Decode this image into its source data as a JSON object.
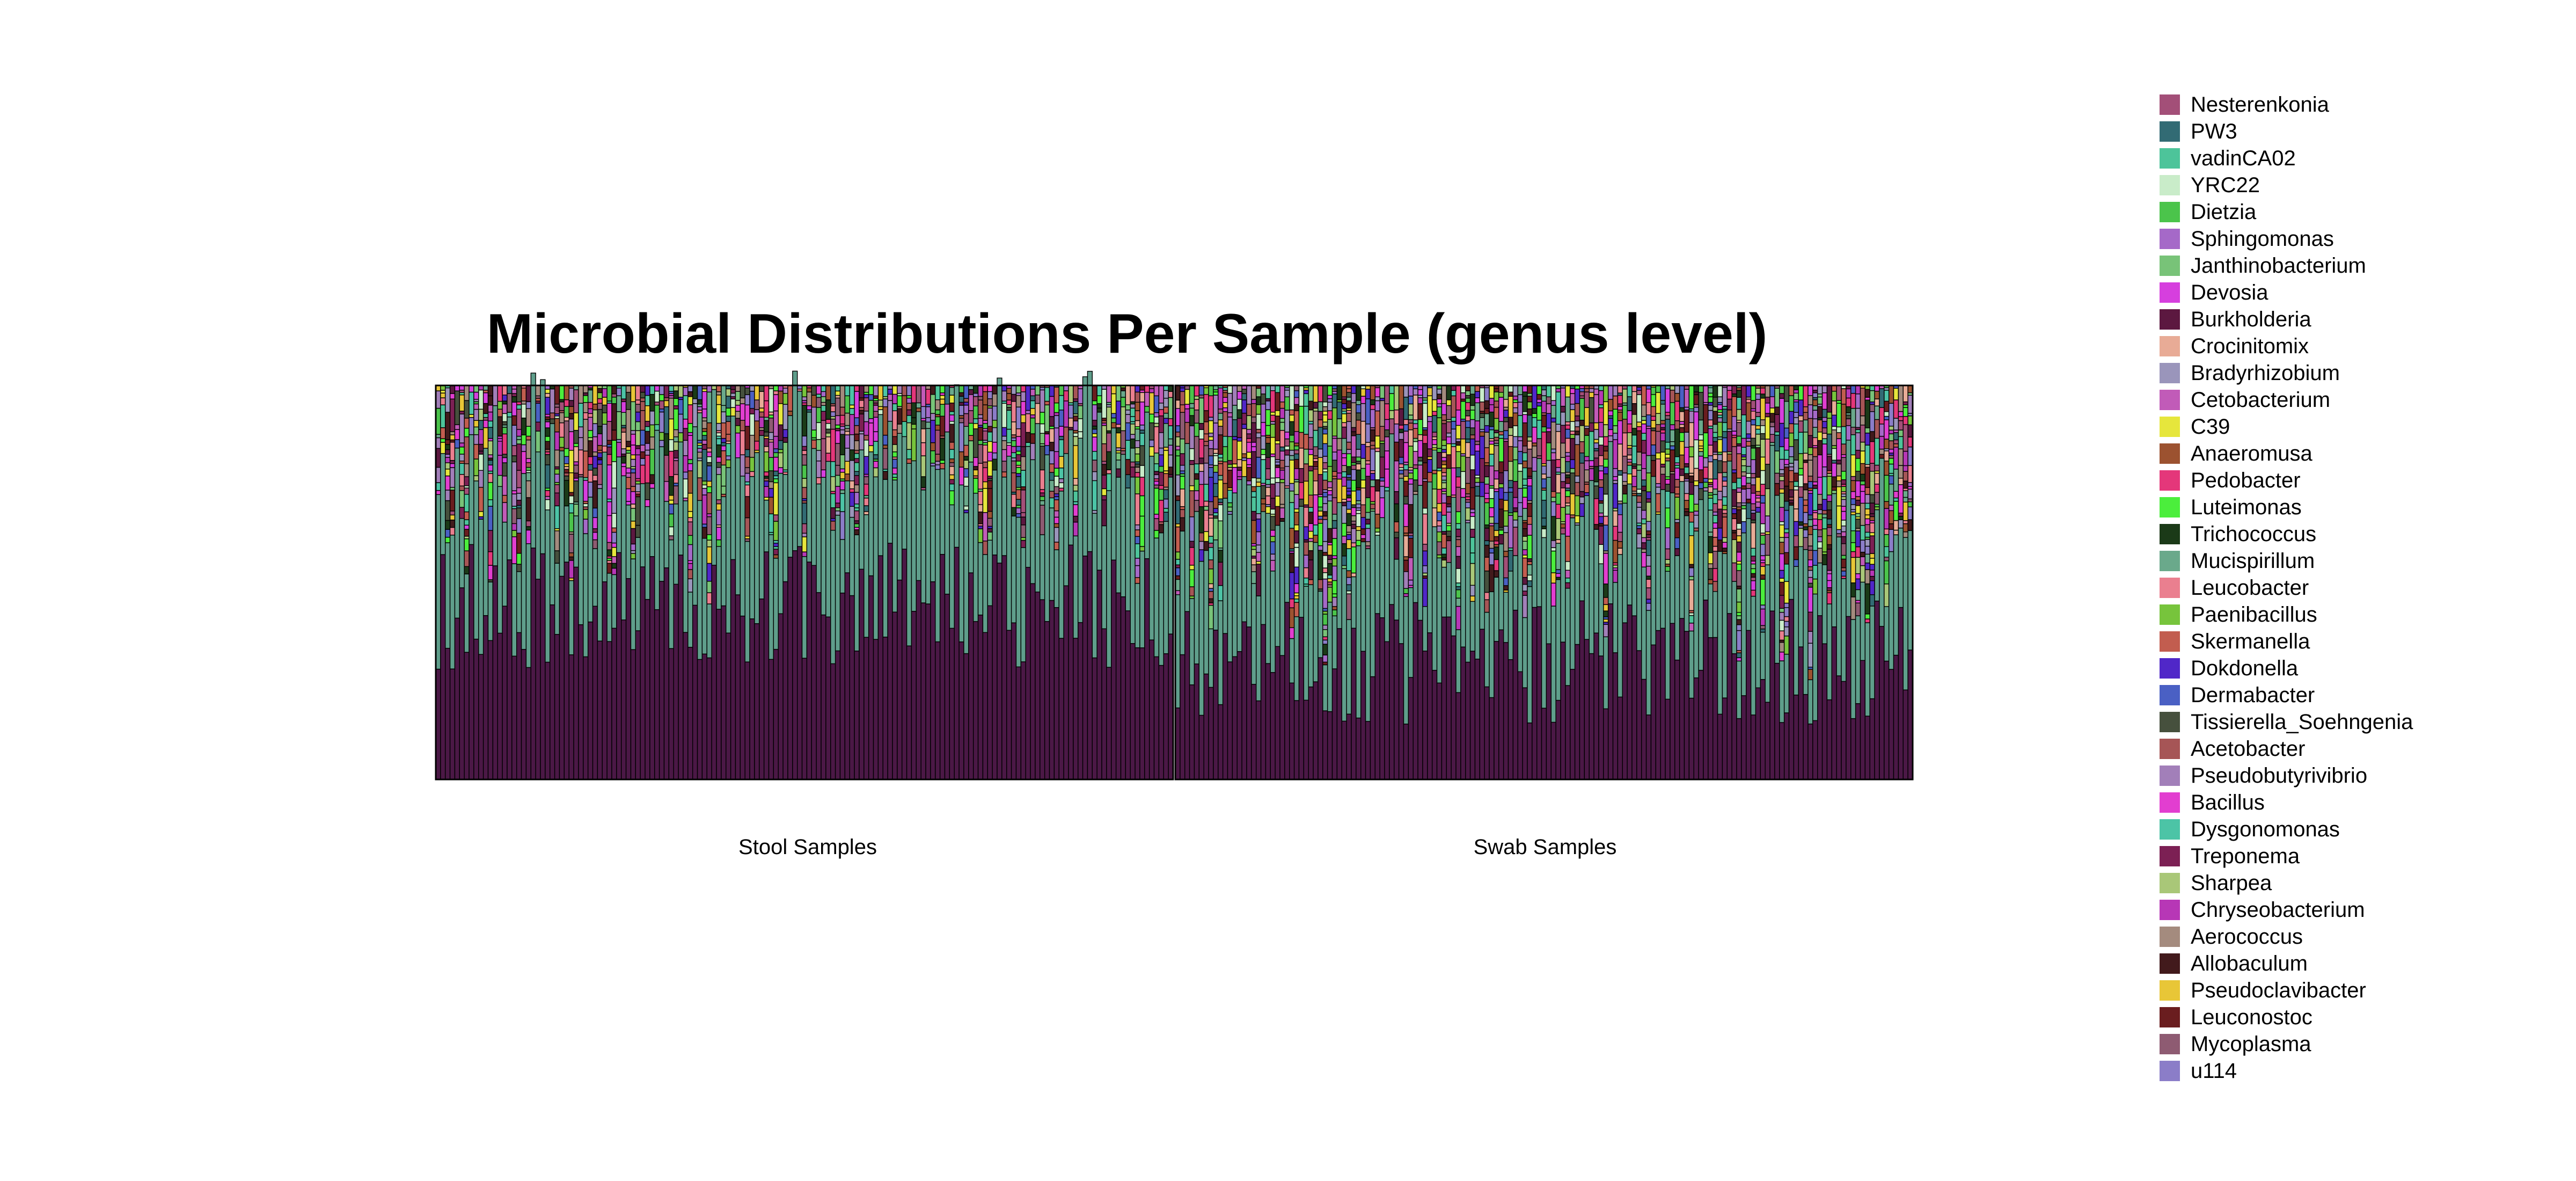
{
  "chart_data": {
    "type": "bar",
    "stacked": true,
    "normalized": true,
    "title": "Microbial Distributions Per Sample (genus level)",
    "xlabel": "",
    "ylabel": "",
    "ylim": [
      0,
      1
    ],
    "grid": false,
    "legend_position": "right",
    "groups": [
      {
        "name": "Stool Samples",
        "n_samples": 155
      },
      {
        "name": "Swab Samples",
        "n_samples": 155
      }
    ],
    "dominant_layers": [
      {
        "color": "#4b1846",
        "stool_mean_fraction": 0.44,
        "swab_mean_fraction": 0.3
      },
      {
        "color": "#5f9e8b",
        "stool_mean_fraction": 0.3,
        "swab_mean_fraction": 0.28
      }
    ],
    "legend": [
      {
        "name": "Nesterenkonia",
        "color": "#a34f78"
      },
      {
        "name": "PW3",
        "color": "#326b74"
      },
      {
        "name": "vadinCA02",
        "color": "#4dc49a"
      },
      {
        "name": "YRC22",
        "color": "#c9ecc9"
      },
      {
        "name": "Dietzia",
        "color": "#4bc44b"
      },
      {
        "name": "Sphingomonas",
        "color": "#a569c8"
      },
      {
        "name": "Janthinobacterium",
        "color": "#78c378"
      },
      {
        "name": "Devosia",
        "color": "#d63fde"
      },
      {
        "name": "Burkholderia",
        "color": "#5c1840"
      },
      {
        "name": "Crocinitomix",
        "color": "#e8ab96"
      },
      {
        "name": "Bradyrhizobium",
        "color": "#9a95bb"
      },
      {
        "name": "Cetobacterium",
        "color": "#c15bb8"
      },
      {
        "name": "C39",
        "color": "#e6e63c"
      },
      {
        "name": "Anaeromusa",
        "color": "#9c5230"
      },
      {
        "name": "Pedobacter",
        "color": "#e4377a"
      },
      {
        "name": "Luteimonas",
        "color": "#4bee3c"
      },
      {
        "name": "Trichococcus",
        "color": "#1b3a18"
      },
      {
        "name": "Mucispirillum",
        "color": "#6aa98b"
      },
      {
        "name": "Leucobacter",
        "color": "#ea7f8f"
      },
      {
        "name": "Paenibacillus",
        "color": "#77c43c"
      },
      {
        "name": "Skermanella",
        "color": "#c25d4f"
      },
      {
        "name": "Dokdonella",
        "color": "#5027c8"
      },
      {
        "name": "Dermabacter",
        "color": "#4a60c4"
      },
      {
        "name": "Tissierella_Soehngenia",
        "color": "#46503d"
      },
      {
        "name": "Acetobacter",
        "color": "#a65556"
      },
      {
        "name": "Pseudobutyrivibrio",
        "color": "#a27fb9"
      },
      {
        "name": "Bacillus",
        "color": "#e23ed0"
      },
      {
        "name": "Dysgonomonas",
        "color": "#4cc4a6"
      },
      {
        "name": "Treponema",
        "color": "#7c2054"
      },
      {
        "name": "Sharpea",
        "color": "#a9c778"
      },
      {
        "name": "Chryseobacterium",
        "color": "#b737b6"
      },
      {
        "name": "Aerococcus",
        "color": "#a48b7e"
      },
      {
        "name": "Allobaculum",
        "color": "#421a1c"
      },
      {
        "name": "Pseudoclavibacter",
        "color": "#e8c637"
      },
      {
        "name": "Leuconostoc",
        "color": "#6a1d1f"
      },
      {
        "name": "Mycoplasma",
        "color": "#8e5b72"
      },
      {
        "name": "u114",
        "color": "#8b7dc8"
      }
    ]
  }
}
